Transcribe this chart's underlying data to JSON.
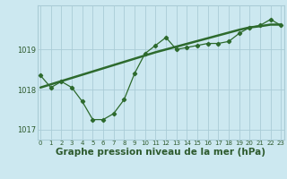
{
  "hours": [
    0,
    1,
    2,
    3,
    4,
    5,
    6,
    7,
    8,
    9,
    10,
    11,
    12,
    13,
    14,
    15,
    16,
    17,
    18,
    19,
    20,
    21,
    22,
    23
  ],
  "pressure_main": [
    1018.35,
    1018.05,
    1018.2,
    1018.05,
    1017.7,
    1017.25,
    1017.25,
    1017.4,
    1017.75,
    1018.4,
    1018.9,
    1019.1,
    1019.3,
    1019.0,
    1019.05,
    1019.1,
    1019.15,
    1019.15,
    1019.2,
    1019.4,
    1019.55,
    1019.6,
    1019.75,
    1019.6
  ],
  "pressure_trend": [
    1018.05,
    1018.13,
    1018.21,
    1018.29,
    1018.37,
    1018.45,
    1018.53,
    1018.61,
    1018.69,
    1018.77,
    1018.85,
    1018.93,
    1019.0,
    1019.07,
    1019.14,
    1019.21,
    1019.28,
    1019.35,
    1019.42,
    1019.49,
    1019.55,
    1019.58,
    1019.62,
    1019.62
  ],
  "line_color": "#2d6a2d",
  "bg_color": "#cce8f0",
  "grid_color": "#aaccd6",
  "text_color": "#2d5a2d",
  "ylim": [
    1016.75,
    1020.1
  ],
  "yticks": [
    1017,
    1018,
    1019
  ],
  "xlabel": "Graphe pression niveau de la mer (hPa)",
  "xlabel_fontsize": 7.5,
  "tick_fontsize": 6,
  "xtick_fontsize": 5
}
